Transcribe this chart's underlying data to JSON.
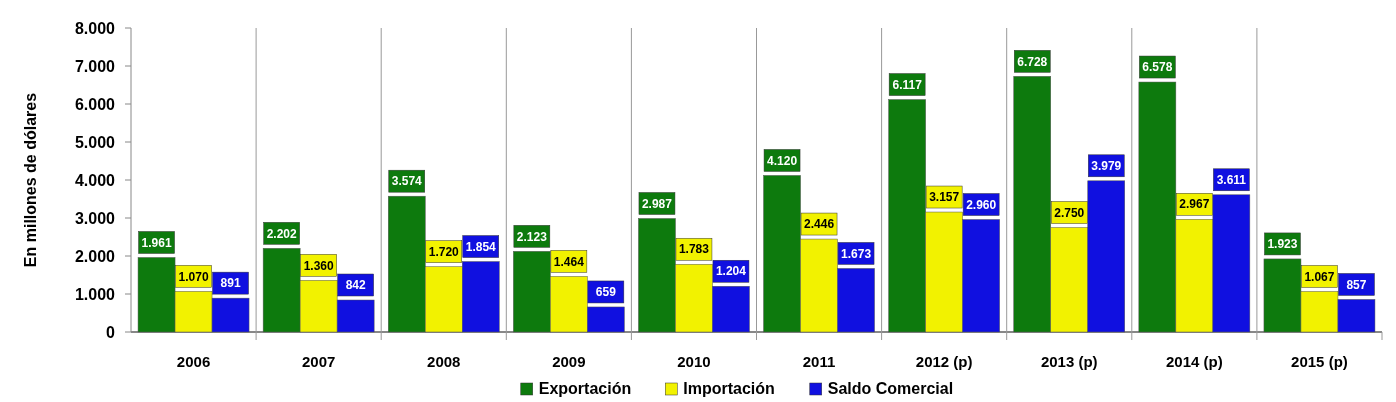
{
  "chart_data": {
    "type": "bar",
    "ylabel": "En millones de dólares",
    "categories": [
      "2006",
      "2007",
      "2008",
      "2009",
      "2010",
      "2011",
      "2012 (p)",
      "2013 (p)",
      "2014 (p)",
      "2015 (p)"
    ],
    "series": [
      {
        "name": "Exportación",
        "color": "#0d7a0d",
        "values": [
          1961,
          2202,
          3574,
          2123,
          2987,
          4120,
          6117,
          6728,
          6578,
          1923
        ],
        "value_labels": [
          "1.961",
          "2.202",
          "3.574",
          "2.123",
          "2.987",
          "4.120",
          "6.117",
          "6.728",
          "6.578",
          "1.923"
        ]
      },
      {
        "name": "Importación",
        "color": "#f2f200",
        "values": [
          1070,
          1360,
          1720,
          1464,
          1783,
          2446,
          3157,
          2750,
          2967,
          1067
        ],
        "value_labels": [
          "1.070",
          "1.360",
          "1.720",
          "1.464",
          "1.783",
          "2.446",
          "3.157",
          "2.750",
          "2.967",
          "1.067"
        ]
      },
      {
        "name": "Saldo Comercial",
        "color": "#1010e0",
        "values": [
          891,
          842,
          1854,
          659,
          1204,
          1673,
          2960,
          3979,
          3611,
          857
        ],
        "value_labels": [
          "891",
          "842",
          "1.854",
          "659",
          "1.204",
          "1.673",
          "2.960",
          "3.979",
          "3.611",
          "857"
        ]
      }
    ],
    "ylim": [
      0,
      8000
    ],
    "yticks": [
      {
        "value": 0,
        "label": "0"
      },
      {
        "value": 1000,
        "label": "1.000"
      },
      {
        "value": 2000,
        "label": "2.000"
      },
      {
        "value": 3000,
        "label": "3.000"
      },
      {
        "value": 4000,
        "label": "4.000"
      },
      {
        "value": 5000,
        "label": "5.000"
      },
      {
        "value": 6000,
        "label": "6.000"
      },
      {
        "value": 7000,
        "label": "7.000"
      },
      {
        "value": 8000,
        "label": "8.000"
      }
    ],
    "legend": "bottom"
  }
}
